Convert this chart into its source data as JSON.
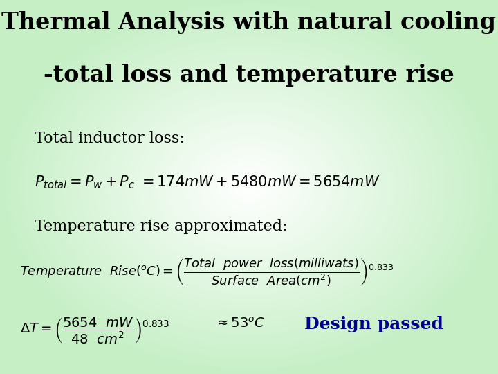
{
  "title_line1": "Thermal Analysis with natural cooling",
  "title_line2": "-total loss and temperature rise",
  "title_fontsize": 24,
  "title_color": "#000000",
  "label1": "Total inductor loss:",
  "label2": "Temperature rise approximated:",
  "formula1": "$P_{total} = P_w + P_c  \\ =174mW + 5480mW = 5654mW$",
  "formula2": "$Temperature\\ \\ Rise\\left({}^oC\\right)=\\left(\\dfrac{Total\\ \\ power\\ \\ loss(milliwats)}{Surface\\ \\ Area(cm^2)}\\right)^{0.833}$",
  "formula3": "$\\Delta T = \\left(\\dfrac{5654\\ \\ mW}{48\\ \\ cm^2}\\right)^{0.833}$",
  "approx": "$\\approx 53^oC$",
  "design_passed": "Design passed",
  "design_passed_color": "#00008B",
  "label_fontsize": 16,
  "formula1_fontsize": 15,
  "formula2_fontsize": 13,
  "formula3_fontsize": 14,
  "approx_fontsize": 14,
  "design_passed_fontsize": 18,
  "bg_green_r": 0.78,
  "bg_green_g": 0.94,
  "bg_green_b": 0.78
}
